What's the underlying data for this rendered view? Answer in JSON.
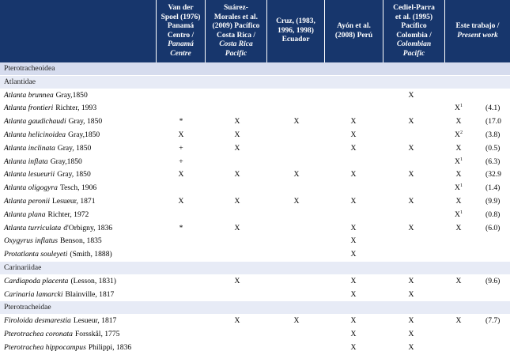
{
  "headers": [
    {
      "lines": [
        "Van der",
        "Spoel (1976)",
        "Panamá",
        "Centro /"
      ],
      "italic_lines": [
        "Panamá",
        "Centre"
      ]
    },
    {
      "lines": [
        "Suárez-",
        "Morales et al.",
        "(2009) Pacífico",
        "Costa Rica /"
      ],
      "italic_lines": [
        "Costa Rica",
        "Pacific"
      ]
    },
    {
      "lines": [
        "Cruz, (1983,",
        "1996, 1998)",
        "Ecuador"
      ],
      "italic_lines": []
    },
    {
      "lines": [
        "Ayón et al.",
        "(2008) Perú"
      ],
      "italic_lines": []
    },
    {
      "lines": [
        "Cediel-Parra",
        "et al. (1995)",
        "Pacífico",
        "Colombia /"
      ],
      "italic_lines": [
        "Colombian",
        "Pacific"
      ]
    },
    {
      "lines": [
        "Este trabajo /"
      ],
      "italic_lines": [
        "Present work"
      ]
    }
  ],
  "rows": [
    {
      "type": "group",
      "label": "Pterotracheoidea"
    },
    {
      "type": "family",
      "label": "Atlantidae"
    },
    {
      "type": "species",
      "genus": "Atlanta brunnea",
      "author": "Gray,1850",
      "marks": [
        "",
        "",
        "",
        "",
        "X",
        ""
      ],
      "sup": "",
      "value": ""
    },
    {
      "type": "species",
      "genus": "Atlanta frontieri",
      "author": "Richter, 1993",
      "marks": [
        "",
        "",
        "",
        "",
        "",
        "X"
      ],
      "sup": "1",
      "value": "(4.1)"
    },
    {
      "type": "species",
      "genus": "Atlanta gaudichaudi",
      "author": "Gray, 1850",
      "marks": [
        "*",
        "X",
        "X",
        "X",
        "X",
        "X"
      ],
      "sup": "",
      "value": "(17.0"
    },
    {
      "type": "species",
      "genus": "Atlanta helicinoidea",
      "author": "Gray,1850",
      "marks": [
        "X",
        "X",
        "",
        "X",
        "",
        "X"
      ],
      "sup": "2",
      "value": "(3.8)"
    },
    {
      "type": "species",
      "genus": "Atlanta inclinata",
      "author": "Gray, 1850",
      "marks": [
        "+",
        "X",
        "",
        "X",
        "X",
        "X"
      ],
      "sup": "",
      "value": "(0.5)"
    },
    {
      "type": "species",
      "genus": "Atlanta inflata",
      "author": "Gray,1850",
      "marks": [
        "+",
        "",
        "",
        "",
        "",
        "X"
      ],
      "sup": "1",
      "value": "(6.3)"
    },
    {
      "type": "species",
      "genus": "Atlanta lesueurii",
      "author": "Gray, 1850",
      "marks": [
        "X",
        "X",
        "X",
        "X",
        "X",
        "X"
      ],
      "sup": "",
      "value": "(32.9"
    },
    {
      "type": "species",
      "genus": "Atlanta oligogyra",
      "author": "Tesch, 1906",
      "marks": [
        "",
        "",
        "",
        "",
        "",
        "X"
      ],
      "sup": "1",
      "value": "(1.4)"
    },
    {
      "type": "species",
      "genus": "Atlanta peronii",
      "author": "Lesueur, 1871",
      "marks": [
        "X",
        "X",
        "X",
        "X",
        "X",
        "X"
      ],
      "sup": "",
      "value": "(9.9)"
    },
    {
      "type": "species",
      "genus": "Atlanta plana",
      "author": "Richter, 1972",
      "marks": [
        "",
        "",
        "",
        "",
        "",
        "X"
      ],
      "sup": "1",
      "value": "(0.8)"
    },
    {
      "type": "species",
      "genus": "Atlanta turriculata",
      "author": "d'Orbigny, 1836",
      "marks": [
        "*",
        "X",
        "",
        "X",
        "X",
        "X"
      ],
      "sup": "",
      "value": "(6.0)"
    },
    {
      "type": "species",
      "genus": "Oxygyrus inflatus",
      "author": "Benson, 1835",
      "marks": [
        "",
        "",
        "",
        "X",
        "",
        ""
      ],
      "sup": "",
      "value": ""
    },
    {
      "type": "species",
      "genus": "Protatlanta souleyeti",
      "author": "(Smith, 1888)",
      "marks": [
        "",
        "",
        "",
        "X",
        "",
        ""
      ],
      "sup": "",
      "value": ""
    },
    {
      "type": "family",
      "label": "Carinariidae"
    },
    {
      "type": "species",
      "genus": "Cardiapoda placenta",
      "author": "(Lesson, 1831)",
      "marks": [
        "",
        "X",
        "",
        "X",
        "X",
        "X"
      ],
      "sup": "",
      "value": "(9.6)"
    },
    {
      "type": "species",
      "genus": "Carinaria lamarcki",
      "author": "Blainville, 1817",
      "marks": [
        "",
        "",
        "",
        "X",
        "X",
        ""
      ],
      "sup": "",
      "value": ""
    },
    {
      "type": "family",
      "label": "Pterotracheidae"
    },
    {
      "type": "species",
      "genus": "Firoloida desmarestia",
      "author": "Lesueur, 1817",
      "marks": [
        "",
        "X",
        "X",
        "X",
        "X",
        "X"
      ],
      "sup": "",
      "value": "(7.7)"
    },
    {
      "type": "species",
      "genus": "Pterotrachea coronata",
      "author": "Forsskål, 1775",
      "marks": [
        "",
        "",
        "",
        "X",
        "X",
        ""
      ],
      "sup": "",
      "value": ""
    },
    {
      "type": "species",
      "genus": "Pterotrachea hippocampus",
      "author": "Philippi, 1836",
      "marks": [
        "",
        "",
        "",
        "X",
        "X",
        ""
      ],
      "sup": "",
      "value": ""
    }
  ],
  "colors": {
    "header_bg": "#17366c",
    "group_bg": "#d6dcee",
    "family_bg": "#e7ebf6"
  }
}
